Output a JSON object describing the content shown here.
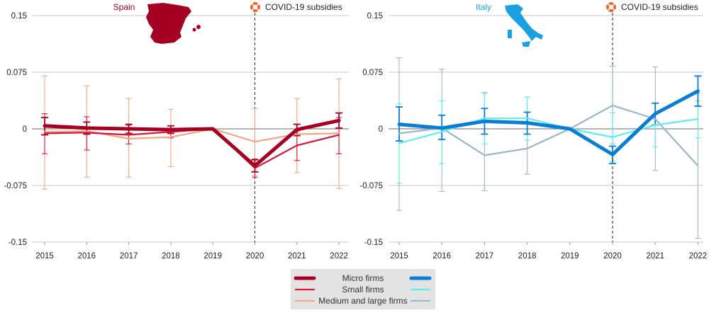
{
  "chart_data": [
    {
      "type": "line",
      "title": "Spain",
      "title_color": "#A50021",
      "annotation": "COVID-19 subsidies",
      "annotation_year": 2020,
      "x": [
        2015,
        2016,
        2017,
        2018,
        2019,
        2020,
        2021,
        2022
      ],
      "ylim": [
        -0.15,
        0.15
      ],
      "yticks": [
        0.15,
        0.075,
        0,
        -0.075,
        -0.15
      ],
      "ytick_labels": [
        "0.15",
        "0.075",
        "0",
        "-0.075",
        "-0.15"
      ],
      "xtick_labels": [
        "2015",
        "2016",
        "2017",
        "2018",
        "2019",
        "2020",
        "2021",
        "2022"
      ],
      "series": [
        {
          "name": "Medium and large firms",
          "color": "#F4A582",
          "values": [
            -0.004,
            -0.003,
            -0.013,
            -0.011,
            0.0,
            -0.017,
            -0.007,
            -0.006
          ],
          "err_low": [
            -0.08,
            -0.064,
            -0.064,
            -0.05,
            null,
            -0.062,
            -0.058,
            -0.079
          ],
          "err_high": [
            0.07,
            0.057,
            0.04,
            0.026,
            null,
            0.027,
            0.04,
            0.066
          ]
        },
        {
          "name": "Small firms",
          "color": "#DC143C",
          "values": [
            -0.006,
            -0.005,
            -0.008,
            -0.004,
            0.0,
            -0.052,
            -0.022,
            -0.008
          ],
          "err_low": [
            -0.033,
            -0.028,
            -0.02,
            -0.012,
            null,
            -0.064,
            -0.042,
            -0.033
          ],
          "err_high": [
            0.02,
            0.016,
            0.005,
            0.004,
            null,
            -0.04,
            -0.003,
            0.015
          ]
        },
        {
          "name": "Micro firms",
          "color": "#A50021",
          "values": [
            0.004,
            0.001,
            0.0,
            -0.001,
            0.0,
            -0.049,
            -0.001,
            0.011
          ],
          "err_low": [
            -0.008,
            -0.007,
            -0.006,
            -0.006,
            null,
            -0.057,
            -0.009,
            0.001
          ],
          "err_high": [
            0.015,
            0.009,
            0.006,
            0.004,
            null,
            -0.041,
            0.006,
            0.021
          ]
        }
      ]
    },
    {
      "type": "line",
      "title": "Italy",
      "title_color": "#1BA1E2",
      "annotation": "COVID-19 subsidies",
      "annotation_year": 2020,
      "x": [
        2015,
        2016,
        2017,
        2018,
        2019,
        2020,
        2021,
        2022
      ],
      "ylim": [
        -0.15,
        0.15
      ],
      "yticks": [
        0.15,
        0.075,
        0,
        -0.075,
        -0.15
      ],
      "ytick_labels": [
        "0.15",
        "0.075",
        "0",
        "-0.075",
        "-0.15"
      ],
      "xtick_labels": [
        "2015",
        "2016",
        "2017",
        "2018",
        "2019",
        "2020",
        "2021",
        "2022"
      ],
      "series": [
        {
          "name": "Medium and large firms",
          "color": "#9BB7C7",
          "values": [
            -0.006,
            0.001,
            -0.035,
            -0.026,
            0.0,
            0.031,
            0.013,
            -0.049
          ],
          "err_low": [
            -0.108,
            -0.083,
            -0.082,
            -0.06,
            null,
            -0.02,
            -0.055,
            -0.145
          ],
          "err_high": [
            0.094,
            0.079,
            0.048,
            0.042,
            null,
            0.083,
            0.082,
            0.047
          ]
        },
        {
          "name": "Small firms",
          "color": "#5CEEF0",
          "values": [
            -0.019,
            -0.004,
            0.014,
            0.014,
            0.0,
            -0.011,
            0.005,
            0.013
          ],
          "err_low": [
            -0.072,
            -0.046,
            -0.02,
            -0.015,
            null,
            -0.043,
            -0.024,
            -0.012
          ],
          "err_high": [
            0.033,
            0.037,
            0.047,
            0.042,
            null,
            0.021,
            0.034,
            0.037
          ]
        },
        {
          "name": "Micro firms",
          "color": "#0A7ED4",
          "values": [
            0.006,
            0.001,
            0.01,
            0.008,
            0.0,
            -0.034,
            0.02,
            0.05
          ],
          "err_low": [
            -0.016,
            -0.014,
            -0.007,
            -0.007,
            null,
            -0.046,
            0.005,
            0.03
          ],
          "err_high": [
            0.029,
            0.018,
            0.027,
            0.022,
            null,
            -0.023,
            0.034,
            0.07
          ]
        }
      ]
    }
  ],
  "legend": {
    "labels": [
      "Micro firms",
      "Small firms",
      "Medium and large firms"
    ],
    "spain_colors": [
      "#A50021",
      "#DC143C",
      "#F4A582"
    ],
    "italy_colors": [
      "#0A7ED4",
      "#5CEEF0",
      "#9BB7C7"
    ]
  },
  "colors": {
    "grid": "#C8C8C8",
    "zero_line": "#888888",
    "annotation_icon": "#F26522",
    "legend_bg": "#E3E3E3"
  }
}
